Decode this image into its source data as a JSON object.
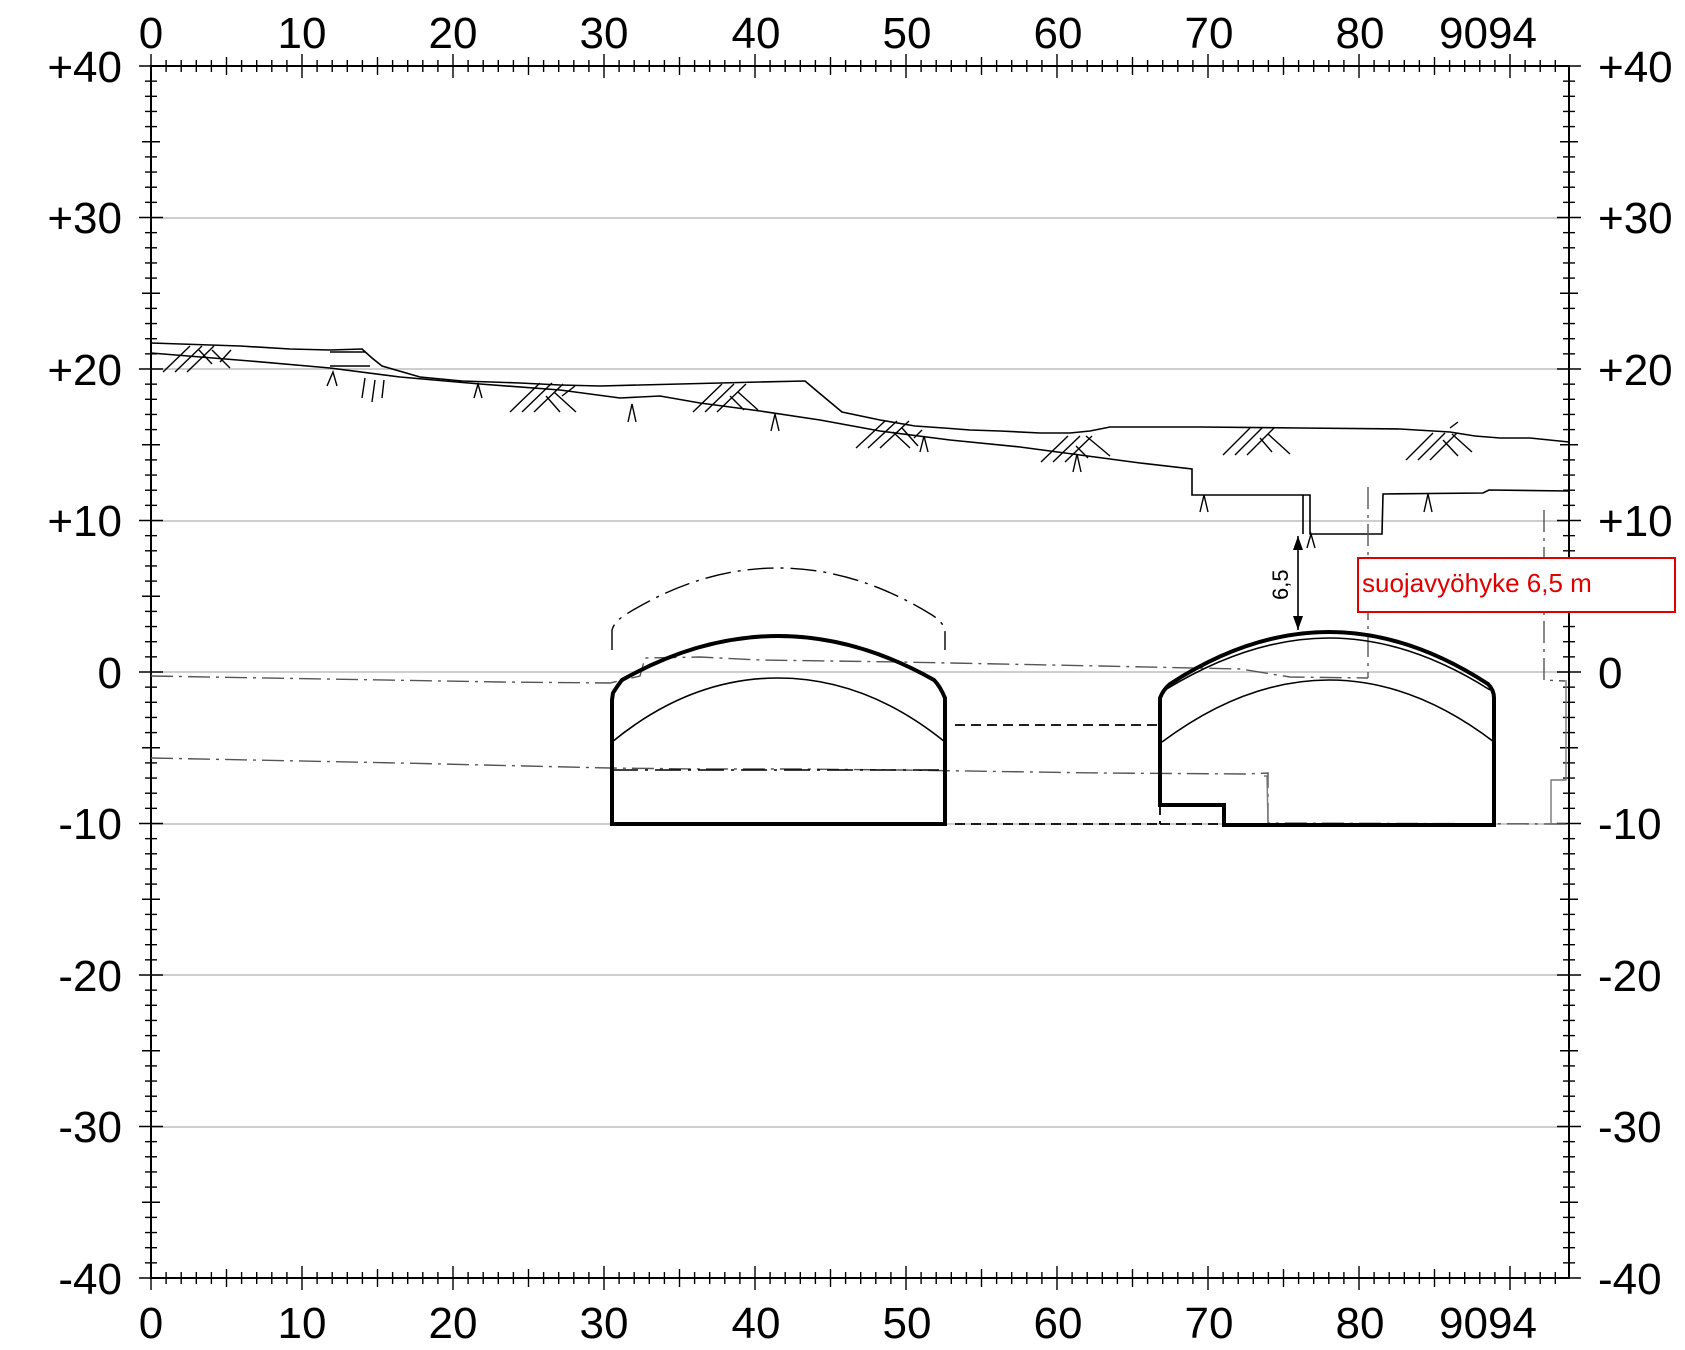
{
  "axes": {
    "x_ticks": [
      "0",
      "10",
      "20",
      "30",
      "40",
      "50",
      "60",
      "70",
      "80"
    ],
    "x_end_label": "9094",
    "y_ticks_left": [
      "+40",
      "+30",
      "+20",
      "+10",
      "0",
      "-10",
      "-20",
      "-30",
      "-40"
    ],
    "y_ticks_right": [
      "+40",
      "+30",
      "+20",
      "+10",
      "0",
      "-10",
      "-20",
      "-30",
      "-40"
    ],
    "x_range": [
      0,
      94
    ],
    "y_range": [
      -40,
      40
    ]
  },
  "dimension": {
    "value": "6,5"
  },
  "annotation": {
    "text": "suojavyöhyke 6,5 m",
    "color": "#e00000"
  }
}
